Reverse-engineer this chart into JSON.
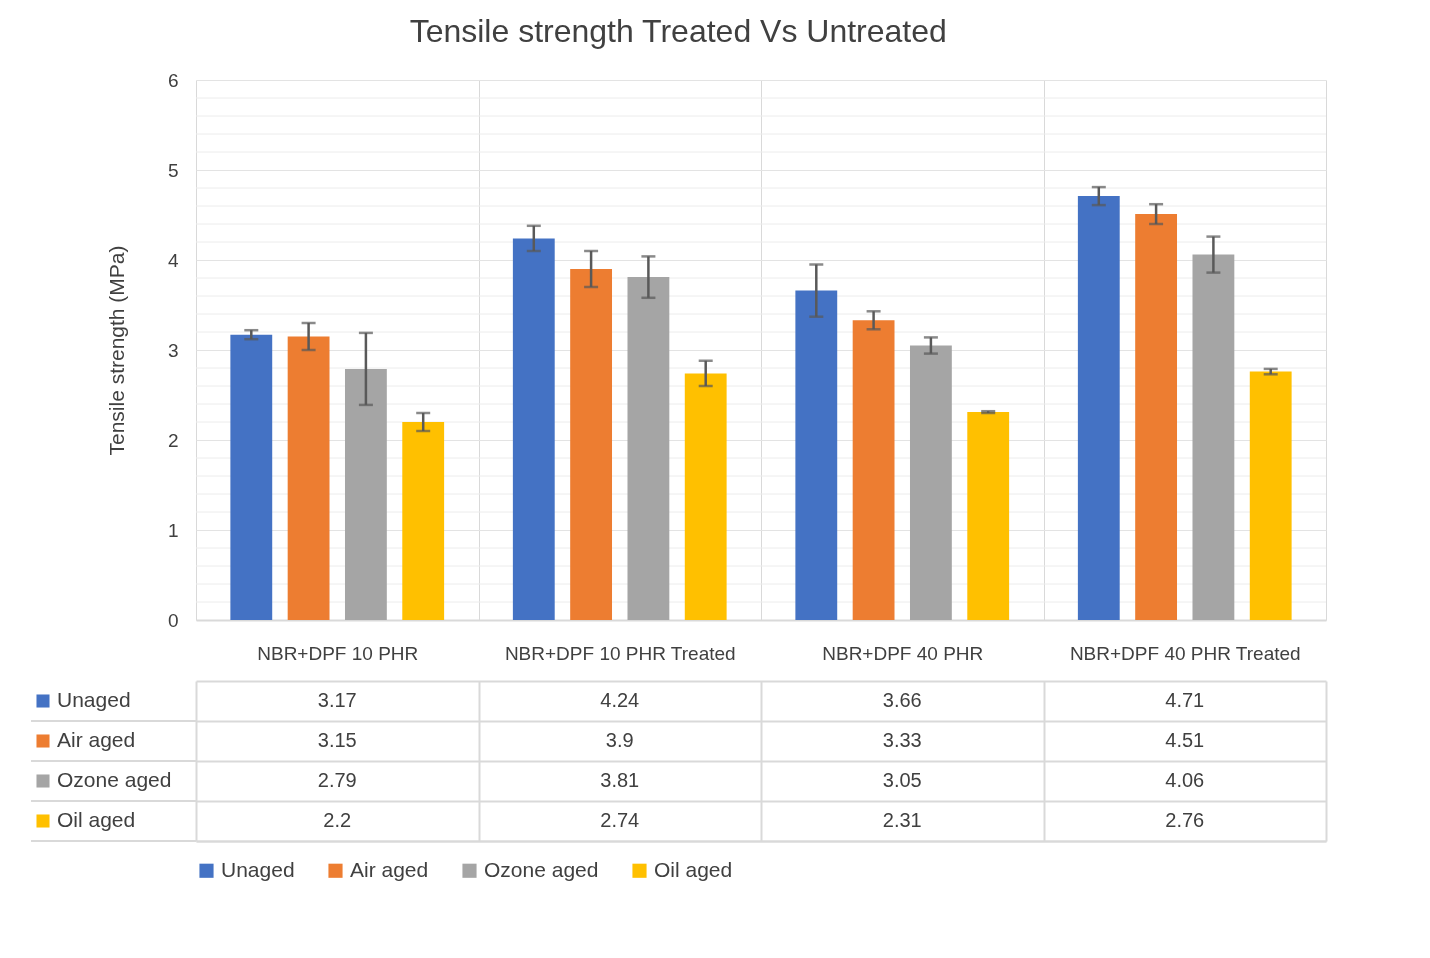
{
  "chart_data": {
    "type": "bar",
    "title": "Tensile strength Treated Vs Untreated",
    "ylabel": "Tensile strength (MPa)",
    "categories": [
      "NBR+DPF 10 PHR",
      "NBR+DPF 10 PHR Treated",
      "NBR+DPF 40 PHR",
      "NBR+DPF 40 PHR Treated"
    ],
    "series": [
      {
        "name": "Unaged",
        "color": "#4472c4",
        "values": [
          3.17,
          4.24,
          3.66,
          4.71
        ],
        "errors": [
          0.05,
          0.14,
          0.29,
          0.1
        ]
      },
      {
        "name": "Air aged",
        "color": "#ed7d31",
        "values": [
          3.15,
          3.9,
          3.33,
          4.51
        ],
        "errors": [
          0.15,
          0.2,
          0.1,
          0.11
        ]
      },
      {
        "name": "Ozone aged",
        "color": "#a5a5a5",
        "values": [
          2.79,
          3.81,
          3.05,
          4.06
        ],
        "errors": [
          0.4,
          0.23,
          0.09,
          0.2
        ]
      },
      {
        "name": "Oil aged",
        "color": "#ffc000",
        "values": [
          2.2,
          2.74,
          2.31,
          2.76
        ],
        "errors": [
          0.1,
          0.14,
          0.01,
          0.03
        ]
      }
    ],
    "ylim": [
      0,
      6
    ],
    "yticks": [
      0,
      {
        "value": 0.2,
        "label": null
      },
      {
        "value": 0.4,
        "label": null
      },
      {
        "value": 0.6,
        "label": null
      },
      {
        "value": 0.8,
        "label": null
      },
      1,
      {
        "value": 1.2,
        "label": null
      },
      {
        "value": 1.4,
        "label": null
      },
      {
        "value": 1.6,
        "label": null
      },
      {
        "value": 1.8,
        "label": null
      },
      2,
      {
        "value": 2.2,
        "label": null
      },
      {
        "value": 2.4,
        "label": null
      },
      {
        "value": 2.6,
        "label": null
      },
      {
        "value": 2.8,
        "label": null
      },
      3,
      {
        "value": 3.2,
        "label": null
      },
      {
        "value": 3.4,
        "label": null
      },
      {
        "value": 3.6,
        "label": null
      },
      {
        "value": 3.8,
        "label": null
      },
      4,
      {
        "value": 4.2,
        "label": null
      },
      {
        "value": 4.4,
        "label": null
      },
      {
        "value": 4.6,
        "label": null
      },
      {
        "value": 4.8,
        "label": null
      },
      5,
      {
        "value": 5.2,
        "label": null
      },
      {
        "value": 5.4,
        "label": null
      },
      {
        "value": 5.6,
        "label": null
      },
      {
        "value": 5.8,
        "label": null
      },
      6
    ],
    "grid": true,
    "legend": "bottom",
    "data_labels": true
  }
}
